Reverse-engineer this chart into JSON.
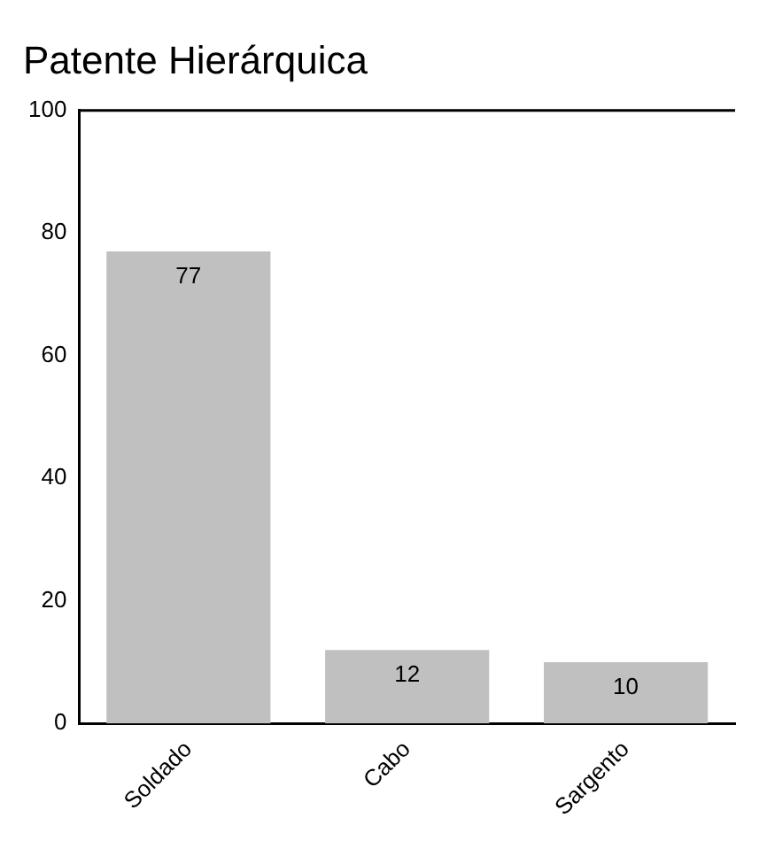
{
  "chart_data": {
    "type": "bar",
    "title": "Patente Hierárquica",
    "categories": [
      "Soldado",
      "Cabo",
      "Sargento"
    ],
    "values": [
      77,
      12,
      10
    ],
    "color": "#c0c0c0",
    "ylim": [
      0,
      100
    ],
    "yticks": [
      0,
      20,
      40,
      60,
      80,
      100
    ],
    "grid": false,
    "legend": false,
    "data_labels": true
  }
}
